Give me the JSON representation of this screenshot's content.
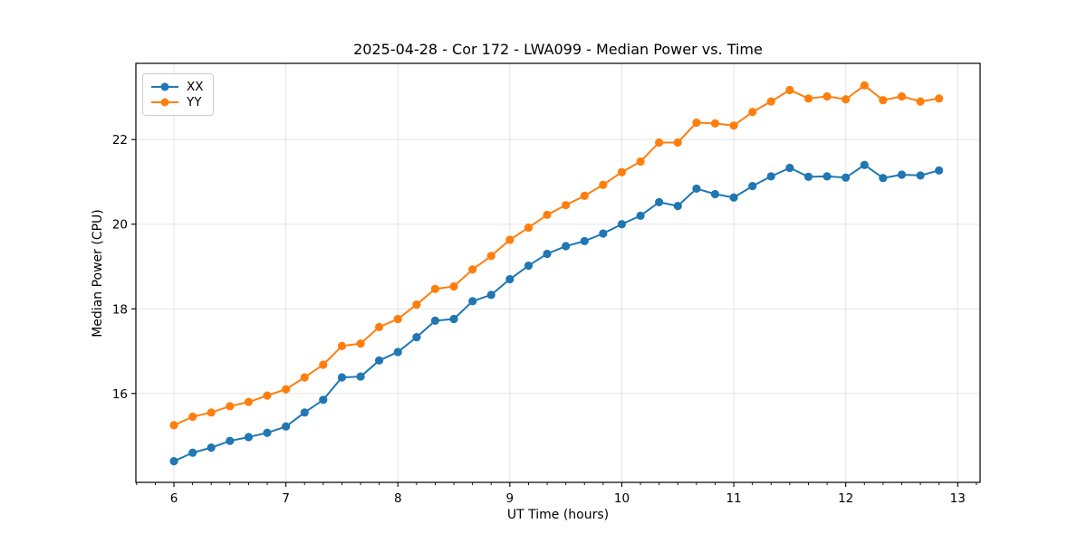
{
  "chart_data": {
    "type": "line",
    "title": "2025-04-28 - Cor 172 - LWA099 - Median Power vs. Time",
    "xlabel": "UT Time (hours)",
    "ylabel": "Median Power (CPU)",
    "xlim": [
      5.66,
      13.2
    ],
    "ylim": [
      13.9,
      23.8
    ],
    "x_ticks": [
      6,
      7,
      8,
      9,
      10,
      11,
      12,
      13
    ],
    "y_ticks": [
      16,
      18,
      20,
      22
    ],
    "x_minor_step": 0.1666667,
    "grid": true,
    "grid_color": "#e4e4e4",
    "axis_color": "#000000",
    "legend_position": "upper-left",
    "x": [
      6.0,
      6.167,
      6.333,
      6.5,
      6.667,
      6.833,
      7.0,
      7.167,
      7.333,
      7.5,
      7.667,
      7.833,
      8.0,
      8.167,
      8.333,
      8.5,
      8.667,
      8.833,
      9.0,
      9.167,
      9.333,
      9.5,
      9.667,
      9.833,
      10.0,
      10.167,
      10.333,
      10.5,
      10.667,
      10.833,
      11.0,
      11.167,
      11.333,
      11.5,
      11.667,
      11.833,
      12.0,
      12.167,
      12.333,
      12.5,
      12.667,
      12.833
    ],
    "series": [
      {
        "name": "XX",
        "color": "#1f77b4",
        "values": [
          14.4,
          14.6,
          14.72,
          14.88,
          14.97,
          15.07,
          15.22,
          15.55,
          15.85,
          16.38,
          16.4,
          16.78,
          16.98,
          17.33,
          17.72,
          17.76,
          18.18,
          18.33,
          18.7,
          19.02,
          19.3,
          19.48,
          19.6,
          19.78,
          20.0,
          20.2,
          20.52,
          20.43,
          20.84,
          20.71,
          20.63,
          20.9,
          21.13,
          21.33,
          21.12,
          21.13,
          21.1,
          21.4,
          21.09,
          21.17,
          21.15,
          21.27
        ]
      },
      {
        "name": "YY",
        "color": "#ff7f0e",
        "values": [
          15.25,
          15.45,
          15.55,
          15.7,
          15.8,
          15.95,
          16.1,
          16.38,
          16.68,
          17.12,
          17.18,
          17.57,
          17.76,
          18.1,
          18.47,
          18.53,
          18.93,
          19.25,
          19.63,
          19.92,
          20.22,
          20.45,
          20.67,
          20.93,
          21.23,
          21.48,
          21.93,
          21.93,
          22.4,
          22.38,
          22.33,
          22.65,
          22.9,
          23.17,
          22.97,
          23.02,
          22.95,
          23.28,
          22.93,
          23.02,
          22.9,
          22.97
        ]
      }
    ]
  }
}
